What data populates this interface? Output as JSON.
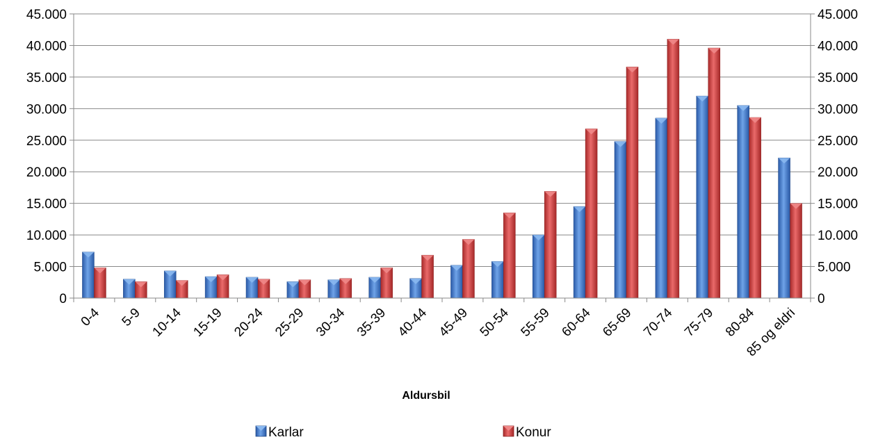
{
  "chart_data": {
    "type": "bar",
    "categories": [
      "0-4",
      "5-9",
      "10-14",
      "15-19",
      "20-24",
      "25-29",
      "30-34",
      "35-39",
      "40-44",
      "45-49",
      "50-54",
      "55-59",
      "60-64",
      "65-69",
      "70-74",
      "75-79",
      "80-84",
      "85 og eldri"
    ],
    "series": [
      {
        "name": "Karlar",
        "color": "#3a72c4",
        "values": [
          7300,
          3000,
          4300,
          3400,
          3300,
          2600,
          2900,
          3300,
          3100,
          5200,
          5800,
          10000,
          14500,
          24800,
          28500,
          32000,
          30500,
          22200
        ]
      },
      {
        "name": "Konur",
        "color": "#d23a3a",
        "values": [
          4800,
          2600,
          2800,
          3700,
          3000,
          2900,
          3100,
          4800,
          6800,
          9300,
          13500,
          16900,
          26800,
          36600,
          41000,
          39600,
          28600,
          15000
        ]
      }
    ],
    "xlabel": "Aldursbil",
    "ylim": [
      0,
      45000
    ],
    "yticks": [
      0,
      5000,
      10000,
      15000,
      20000,
      25000,
      30000,
      35000,
      40000,
      45000
    ],
    "ytick_labels": [
      "0",
      "5.000",
      "10.000",
      "15.000",
      "20.000",
      "25.000",
      "30.000",
      "35.000",
      "40.000",
      "45.000"
    ],
    "secondary_y_axis": true,
    "grid": true,
    "legend_position": "bottom"
  }
}
